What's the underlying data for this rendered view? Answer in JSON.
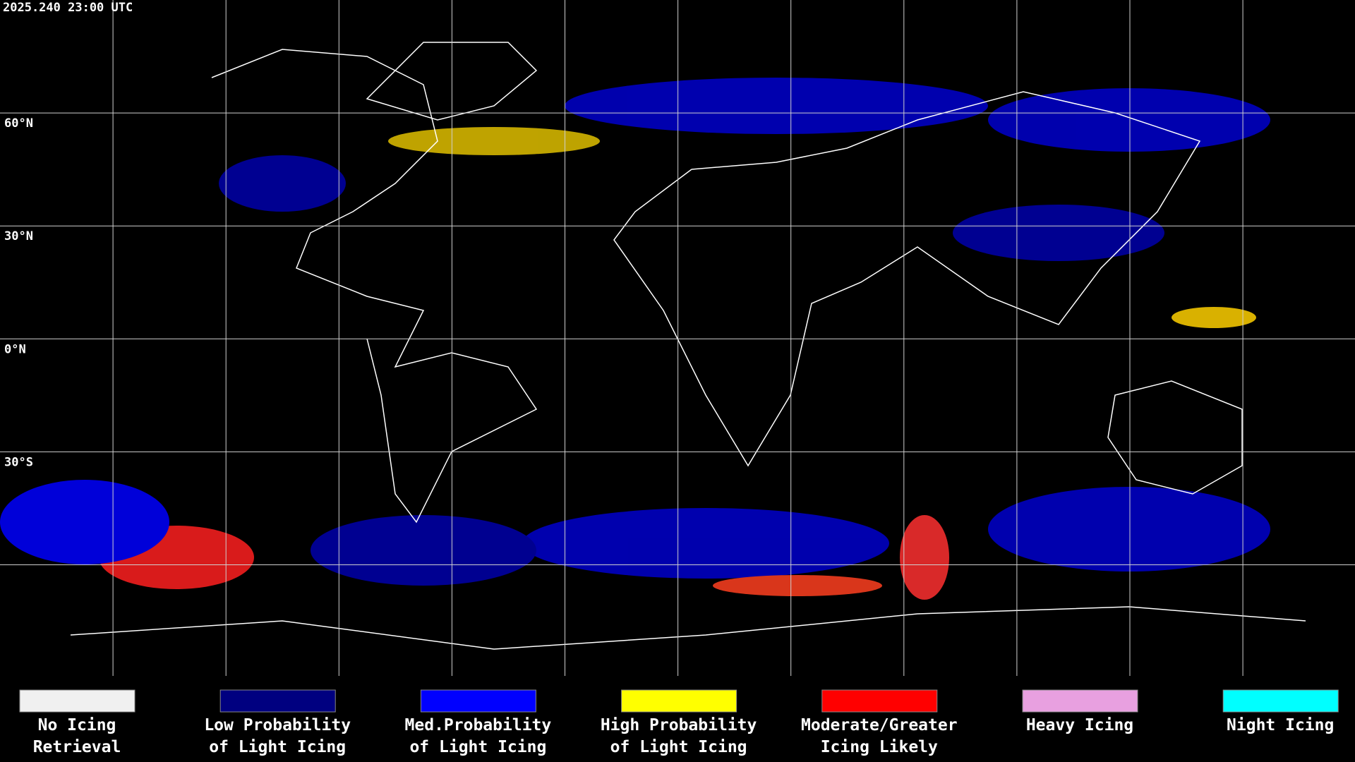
{
  "header": {
    "timestamp": "2025.240 23:00 UTC"
  },
  "map": {
    "latitude_labels": [
      "60°N",
      "30°N",
      "0°N",
      "30°S"
    ]
  },
  "legend": {
    "items": [
      {
        "lines": [
          "No Icing",
          "Retrieval"
        ],
        "color": "#f0f0f0"
      },
      {
        "lines": [
          "Low Probability",
          "of Light Icing"
        ],
        "color": "#000080"
      },
      {
        "lines": [
          "Med.Probability",
          "of Light Icing"
        ],
        "color": "#0000ff"
      },
      {
        "lines": [
          "High Probability",
          "of Light Icing"
        ],
        "color": "#ffff00"
      },
      {
        "lines": [
          "Moderate/Greater",
          "Icing Likely"
        ],
        "color": "#ff0000"
      },
      {
        "lines": [
          "Heavy Icing"
        ],
        "color": "#e8a0e0"
      },
      {
        "lines": [
          "Night Icing"
        ],
        "color": "#00ffff"
      }
    ]
  }
}
